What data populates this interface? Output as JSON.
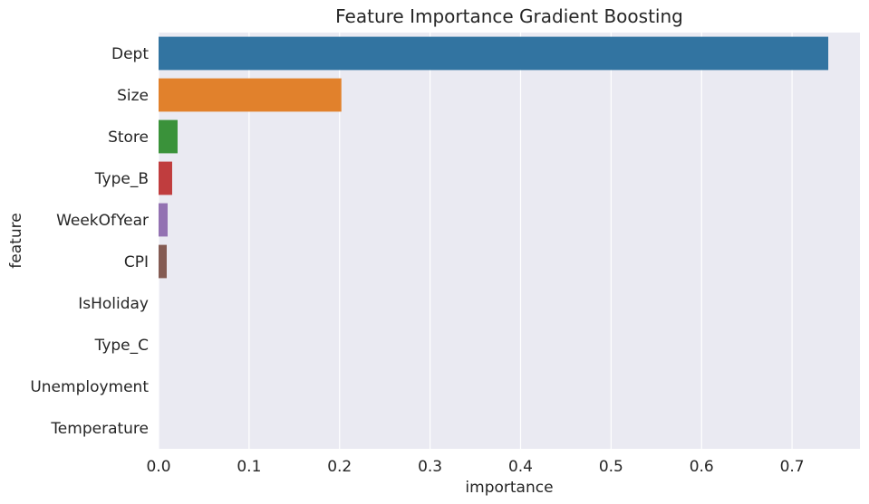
{
  "chart_data": {
    "type": "bar",
    "orientation": "horizontal",
    "title": "Feature Importance Gradient Boosting",
    "xlabel": "importance",
    "ylabel": "feature",
    "xlim": [
      0,
      0.775
    ],
    "xticks": [
      "0.0",
      "0.1",
      "0.2",
      "0.3",
      "0.4",
      "0.5",
      "0.6",
      "0.7"
    ],
    "grid": true,
    "categories": [
      "Dept",
      "Size",
      "Store",
      "Type_B",
      "WeekOfYear",
      "CPI",
      "IsHoliday",
      "Type_C",
      "Unemployment",
      "Temperature"
    ],
    "values": [
      0.74,
      0.202,
      0.021,
      0.015,
      0.01,
      0.009,
      0.0,
      0.0,
      0.0,
      0.0
    ],
    "colors": [
      "#3274a1",
      "#e1812c",
      "#3a923a",
      "#c03d3e",
      "#9372b2",
      "#845b53",
      "#d684bd",
      "#7f7f7f",
      "#a9aa35",
      "#2ba9b9"
    ]
  }
}
